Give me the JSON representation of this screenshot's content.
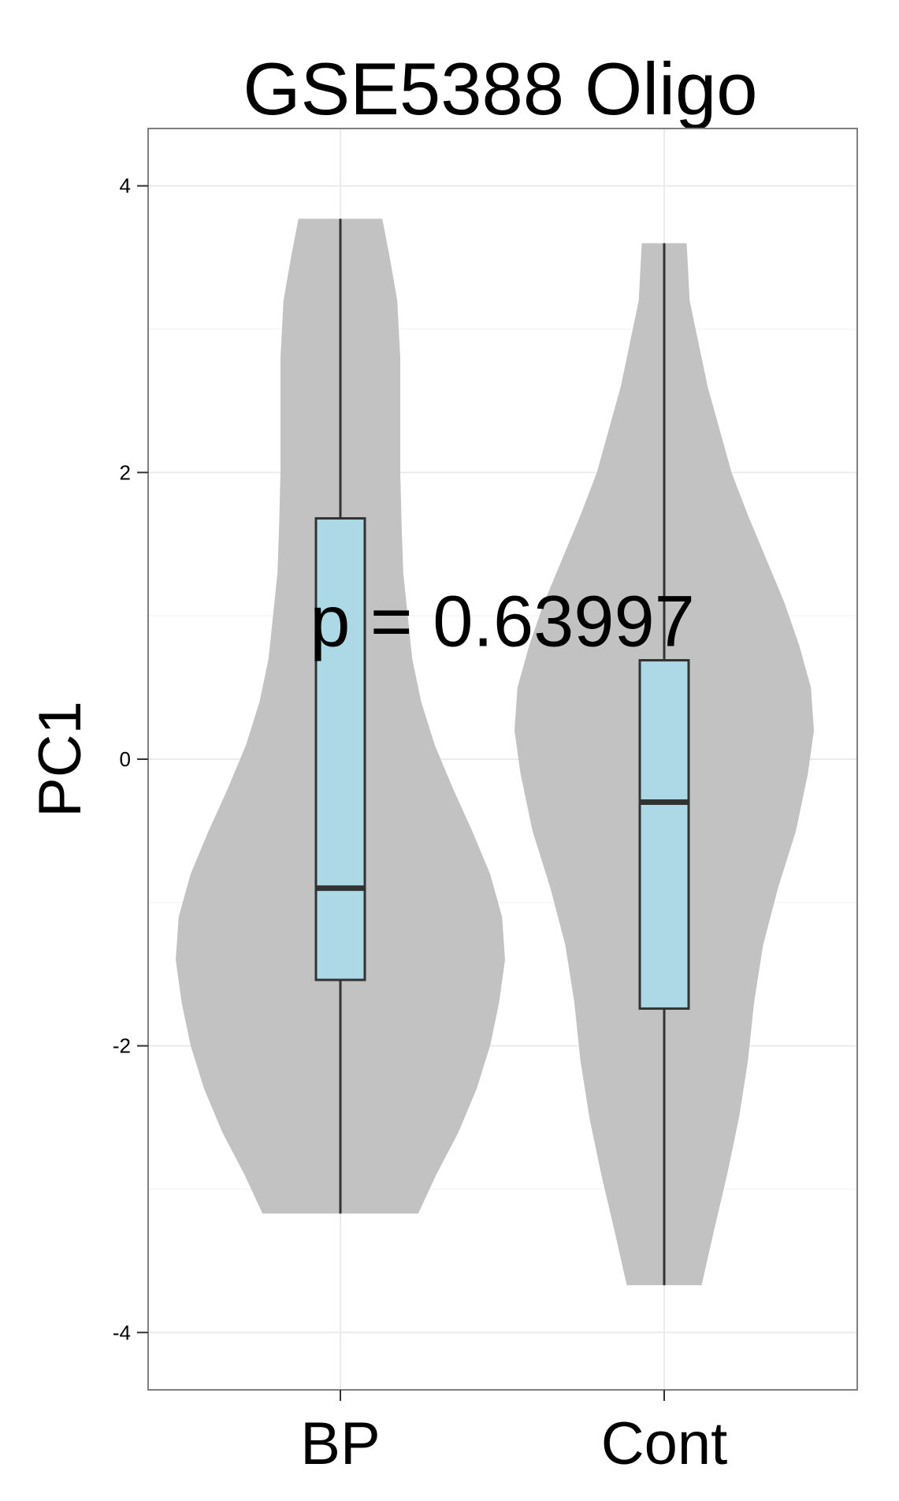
{
  "chart_data": {
    "type": "violin",
    "title": "GSE5388 Oligo",
    "xlabel": "",
    "ylabel": "PC1",
    "categories": [
      "BP",
      "Cont"
    ],
    "ylim": [
      -4.4,
      4.4
    ],
    "yticks": [
      -4,
      -2,
      0,
      2,
      4
    ],
    "ytick_labels": [
      "-4",
      "-2",
      "0",
      "2",
      "4"
    ],
    "grid": true,
    "annotation": {
      "text": "p = 0.63997",
      "x": 1.5,
      "y": 0.97
    },
    "colors": {
      "violin_fill": "#c2c2c2",
      "box_fill": "#add8e6",
      "box_stroke": "#333333",
      "panel_border": "#7f7f7f",
      "grid": "#ebebeb"
    },
    "series": [
      {
        "category": "BP",
        "min": -3.17,
        "q1": -1.54,
        "median": -0.9,
        "q3": 1.68,
        "max": 3.77,
        "density": [
          [
            -3.17,
            0.52
          ],
          [
            -2.9,
            0.64
          ],
          [
            -2.6,
            0.79
          ],
          [
            -2.3,
            0.91
          ],
          [
            -2.0,
            1.0
          ],
          [
            -1.7,
            1.06
          ],
          [
            -1.4,
            1.1
          ],
          [
            -1.1,
            1.08
          ],
          [
            -0.8,
            1.0
          ],
          [
            -0.5,
            0.88
          ],
          [
            -0.2,
            0.75
          ],
          [
            0.1,
            0.63
          ],
          [
            0.4,
            0.54
          ],
          [
            0.7,
            0.48
          ],
          [
            1.0,
            0.45
          ],
          [
            1.3,
            0.42
          ],
          [
            1.6,
            0.41
          ],
          [
            2.0,
            0.4
          ],
          [
            2.4,
            0.4
          ],
          [
            2.8,
            0.4
          ],
          [
            3.2,
            0.38
          ],
          [
            3.5,
            0.33
          ],
          [
            3.77,
            0.28
          ]
        ]
      },
      {
        "category": "Cont",
        "min": -3.67,
        "q1": -1.74,
        "median": -0.3,
        "q3": 0.69,
        "max": 3.6,
        "density": [
          [
            -3.67,
            0.25
          ],
          [
            -3.3,
            0.33
          ],
          [
            -2.9,
            0.42
          ],
          [
            -2.5,
            0.5
          ],
          [
            -2.1,
            0.56
          ],
          [
            -1.7,
            0.6
          ],
          [
            -1.3,
            0.66
          ],
          [
            -0.9,
            0.76
          ],
          [
            -0.5,
            0.88
          ],
          [
            -0.1,
            0.96
          ],
          [
            0.2,
            1.0
          ],
          [
            0.5,
            0.98
          ],
          [
            0.8,
            0.9
          ],
          [
            1.1,
            0.8
          ],
          [
            1.4,
            0.68
          ],
          [
            1.7,
            0.56
          ],
          [
            2.0,
            0.45
          ],
          [
            2.3,
            0.37
          ],
          [
            2.6,
            0.29
          ],
          [
            2.9,
            0.23
          ],
          [
            3.2,
            0.17
          ],
          [
            3.4,
            0.16
          ],
          [
            3.6,
            0.15
          ]
        ]
      }
    ]
  }
}
